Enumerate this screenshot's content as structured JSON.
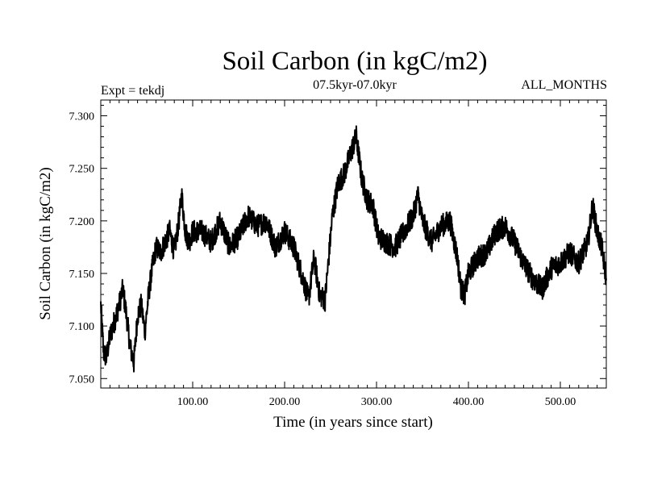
{
  "chart_data": {
    "type": "line",
    "title": "Soil Carbon (in kgC/m2)",
    "subtitle": "07.5kyr-07.0kyr",
    "experiment_label": "Expt = tekdj",
    "months_label": "ALL_MONTHS",
    "xlabel": "Time (in years since start)",
    "ylabel": "Soil Carbon (in kgC/m2)",
    "xlim": [
      0,
      550
    ],
    "ylim": [
      7.041,
      7.315
    ],
    "x_ticks": [
      100,
      200,
      300,
      400,
      500
    ],
    "x_tick_labels": [
      "100.00",
      "200.00",
      "300.00",
      "400.00",
      "500.00"
    ],
    "y_ticks": [
      7.05,
      7.1,
      7.15,
      7.2,
      7.25,
      7.3
    ],
    "y_tick_labels": [
      "7.050",
      "7.100",
      "7.150",
      "7.200",
      "7.250",
      "7.300"
    ],
    "series": [
      {
        "name": "Soil Carbon",
        "x": [
          0,
          3,
          6,
          10,
          15,
          20,
          24,
          28,
          32,
          36,
          40,
          44,
          48,
          52,
          56,
          60,
          65,
          70,
          75,
          80,
          85,
          88,
          92,
          96,
          100,
          110,
          120,
          130,
          140,
          150,
          160,
          170,
          180,
          190,
          200,
          210,
          220,
          226,
          232,
          238,
          244,
          248,
          252,
          258,
          265,
          272,
          278,
          284,
          290,
          296,
          302,
          310,
          320,
          330,
          340,
          345,
          350,
          360,
          370,
          380,
          388,
          392,
          396,
          400,
          410,
          420,
          430,
          440,
          450,
          460,
          470,
          480,
          490,
          500,
          510,
          520,
          530,
          535,
          540,
          545,
          550
        ],
        "values": [
          7.12,
          7.075,
          7.07,
          7.09,
          7.105,
          7.12,
          7.135,
          7.11,
          7.08,
          7.065,
          7.11,
          7.12,
          7.095,
          7.13,
          7.155,
          7.175,
          7.17,
          7.18,
          7.19,
          7.17,
          7.2,
          7.225,
          7.19,
          7.18,
          7.19,
          7.19,
          7.18,
          7.2,
          7.175,
          7.185,
          7.205,
          7.195,
          7.2,
          7.175,
          7.19,
          7.175,
          7.145,
          7.125,
          7.165,
          7.13,
          7.125,
          7.165,
          7.205,
          7.235,
          7.245,
          7.265,
          7.28,
          7.24,
          7.22,
          7.215,
          7.185,
          7.18,
          7.175,
          7.19,
          7.205,
          7.225,
          7.2,
          7.18,
          7.195,
          7.2,
          7.165,
          7.135,
          7.13,
          7.15,
          7.165,
          7.17,
          7.19,
          7.195,
          7.18,
          7.16,
          7.145,
          7.135,
          7.155,
          7.16,
          7.17,
          7.16,
          7.18,
          7.215,
          7.19,
          7.175,
          7.145
        ]
      }
    ]
  }
}
